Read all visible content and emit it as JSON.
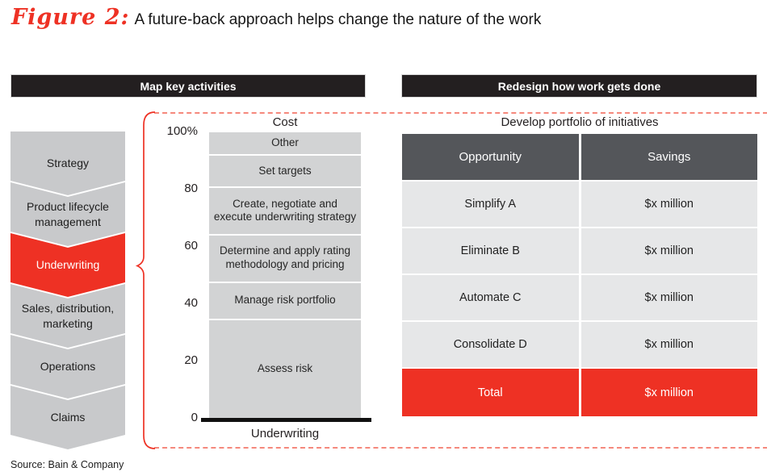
{
  "title": {
    "figure_label": "Figure 2:",
    "text": "A future-back approach helps change the nature of the work"
  },
  "section_headers": {
    "left": "Map key activities",
    "right": "Redesign how work gets done"
  },
  "value_chain": {
    "items": [
      {
        "label": "Strategy",
        "highlighted": false
      },
      {
        "label": "Product lifecycle management",
        "highlighted": false
      },
      {
        "label": "Underwriting",
        "highlighted": true
      },
      {
        "label": "Sales, distribution, marketing",
        "highlighted": false
      },
      {
        "label": "Operations",
        "highlighted": false
      },
      {
        "label": "Claims",
        "highlighted": false
      }
    ]
  },
  "chart_data": {
    "type": "bar",
    "stacked": true,
    "title": "Cost",
    "categories": [
      "Underwriting"
    ],
    "segments_top_to_bottom": [
      {
        "label": "Other",
        "value": 5
      },
      {
        "label": "Set targets",
        "value": 10
      },
      {
        "label": "Create, negotiate and execute underwriting strategy",
        "value": 11
      },
      {
        "label": "Determine and apply rating methodology and pricing",
        "value": 11
      },
      {
        "label": "Manage risk portfolio",
        "value": 13
      },
      {
        "label": "Assess risk",
        "value": 50
      }
    ],
    "unit": "% of cost",
    "ylim": [
      0,
      100
    ],
    "yticks": [
      "100%",
      "80",
      "60",
      "40",
      "20",
      "0"
    ],
    "grid": false,
    "legend": "none"
  },
  "portfolio_table": {
    "title": "Develop portfolio of initiatives",
    "columns": [
      "Opportunity",
      "Savings"
    ],
    "rows": [
      [
        "Simplify A",
        "$x million"
      ],
      [
        "Eliminate B",
        "$x million"
      ],
      [
        "Automate C",
        "$x million"
      ],
      [
        "Consolidate D",
        "$x million"
      ]
    ],
    "total": [
      "Total",
      "$x million"
    ]
  },
  "source": "Source: Bain & Company",
  "colors": {
    "accent_red": "#ee3124",
    "dashed_border": "#f5887c",
    "header_bar_black": "#231f20",
    "chevron_gray": "#c8c9cb",
    "bar_segment_gray": "#d2d3d4",
    "table_header_gray": "#54565a",
    "table_row_gray": "#e6e7e8"
  }
}
